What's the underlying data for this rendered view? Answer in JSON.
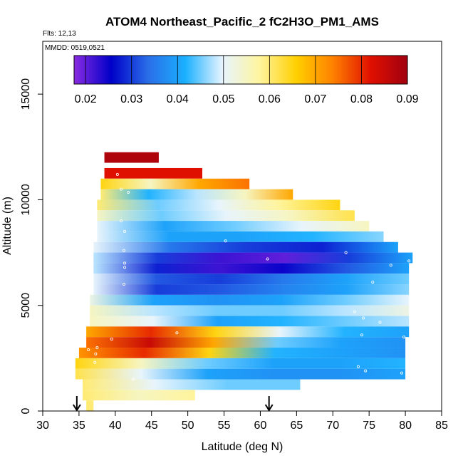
{
  "chart_data": {
    "type": "heatmap",
    "title": "ATOM4 Northeast_Pacific_2 fC2H3O_PM1_AMS",
    "flights_label": "Flts: 12,13",
    "date_label": "MMDD: 0519,0521",
    "xlabel": "Latitude (deg N)",
    "ylabel": "Altitude (m)",
    "xlim": [
      30,
      85
    ],
    "ylim": [
      0,
      17500
    ],
    "x_ticks": [
      "30",
      "35",
      "40",
      "45",
      "50",
      "55",
      "60",
      "65",
      "70",
      "75",
      "80",
      "85"
    ],
    "y_ticks": [
      "0",
      "5000",
      "10000",
      "15000"
    ],
    "colorbar": {
      "range": [
        0.0175,
        0.09
      ],
      "tick_values": [
        0.02,
        0.03,
        0.04,
        0.05,
        0.06,
        0.07,
        0.08,
        0.09
      ],
      "tick_labels": [
        "0.02",
        "0.03",
        "0.04",
        "0.05",
        "0.06",
        "0.07",
        "0.08",
        "0.09"
      ],
      "colors": [
        "#8a2be2",
        "#0000c8",
        "#2a6ee8",
        "#1ab0ff",
        "#e6f4ff",
        "#fff5a0",
        "#ffd000",
        "#ff8000",
        "#e01000",
        "#a00010"
      ]
    },
    "arrows_latitude": [
      34.7,
      61.2
    ],
    "layers": [
      {
        "alt": 12000,
        "lat": [
          38.5,
          46
        ],
        "values": [
          0.088,
          0.088
        ]
      },
      {
        "alt": 11250,
        "lat": [
          38.5,
          52
        ],
        "values": [
          0.082,
          0.082
        ]
      },
      {
        "alt": 10750,
        "lat": [
          38,
          58.5
        ],
        "values": [
          0.065,
          0.055,
          0.07,
          0.075
        ]
      },
      {
        "alt": 10250,
        "lat": [
          38,
          64.5
        ],
        "values": [
          0.06,
          0.042,
          0.048,
          0.055,
          0.07
        ]
      },
      {
        "alt": 9750,
        "lat": [
          37.5,
          71
        ],
        "values": [
          0.06,
          0.045,
          0.05,
          0.058,
          0.065
        ]
      },
      {
        "alt": 9250,
        "lat": [
          37.5,
          73
        ],
        "values": [
          0.055,
          0.045,
          0.05,
          0.055,
          0.062
        ]
      },
      {
        "alt": 8750,
        "lat": [
          37.5,
          75
        ],
        "values": [
          0.05,
          0.04,
          0.045,
          0.05,
          0.055
        ]
      },
      {
        "alt": 8250,
        "lat": [
          37.5,
          77
        ],
        "values": [
          0.05,
          0.04,
          0.04,
          0.042,
          0.046
        ]
      },
      {
        "alt": 7750,
        "lat": [
          37,
          79
        ],
        "values": [
          0.05,
          0.035,
          0.03,
          0.028,
          0.04
        ]
      },
      {
        "alt": 7250,
        "lat": [
          37,
          81
        ],
        "values": [
          0.048,
          0.03,
          0.022,
          0.02,
          0.03,
          0.04
        ]
      },
      {
        "alt": 6750,
        "lat": [
          37,
          80.5
        ],
        "values": [
          0.048,
          0.028,
          0.022,
          0.025,
          0.032,
          0.04
        ]
      },
      {
        "alt": 6250,
        "lat": [
          37,
          80.5
        ],
        "values": [
          0.05,
          0.032,
          0.03,
          0.035,
          0.04,
          0.045
        ]
      },
      {
        "alt": 5750,
        "lat": [
          37,
          80.5
        ],
        "values": [
          0.05,
          0.03,
          0.032,
          0.036,
          0.04,
          0.046
        ]
      },
      {
        "alt": 5250,
        "lat": [
          36.5,
          80.5
        ],
        "values": [
          0.052,
          0.04,
          0.038,
          0.04,
          0.045,
          0.05
        ]
      },
      {
        "alt": 4750,
        "lat": [
          36.5,
          80.5
        ],
        "values": [
          0.055,
          0.048,
          0.045,
          0.045,
          0.048,
          0.052
        ]
      },
      {
        "alt": 4250,
        "lat": [
          36.5,
          80.5
        ],
        "values": [
          0.055,
          0.05,
          0.04,
          0.042,
          0.045,
          0.048
        ]
      },
      {
        "alt": 3750,
        "lat": [
          36,
          80.5
        ],
        "values": [
          0.07,
          0.08,
          0.065,
          0.05,
          0.042,
          0.04
        ]
      },
      {
        "alt": 3250,
        "lat": [
          36,
          80
        ],
        "values": [
          0.075,
          0.085,
          0.07,
          0.045,
          0.04,
          0.038
        ]
      },
      {
        "alt": 2750,
        "lat": [
          35,
          80
        ],
        "values": [
          0.072,
          0.08,
          0.065,
          0.042,
          0.04,
          0.038
        ]
      },
      {
        "alt": 2250,
        "lat": [
          34.5,
          80
        ],
        "values": [
          0.065,
          0.055,
          0.045,
          0.04,
          0.04,
          0.042
        ]
      },
      {
        "alt": 1750,
        "lat": [
          34.5,
          80
        ],
        "values": [
          0.062,
          0.05,
          0.04,
          0.038,
          0.038,
          0.04
        ]
      },
      {
        "alt": 1250,
        "lat": [
          35.5,
          65.5
        ],
        "values": [
          0.06,
          0.05,
          0.045,
          0.045
        ]
      },
      {
        "alt": 750,
        "lat": [
          35.5,
          51
        ],
        "values": [
          0.06,
          0.055,
          0.058
        ]
      },
      {
        "alt": 250,
        "lat": [
          36,
          37
        ],
        "values": [
          0.06
        ]
      }
    ],
    "points": [
      [
        40.3,
        11200
      ],
      [
        40.8,
        10500
      ],
      [
        41.8,
        10350
      ],
      [
        40.8,
        9000
      ],
      [
        41.3,
        8500
      ],
      [
        41.2,
        7600
      ],
      [
        41.3,
        7000
      ],
      [
        41.3,
        6800
      ],
      [
        41.2,
        6000
      ],
      [
        55.2,
        8050
      ],
      [
        61,
        7200
      ],
      [
        71.8,
        7500
      ],
      [
        78,
        6900
      ],
      [
        80.5,
        7100
      ],
      [
        75.5,
        6100
      ],
      [
        73,
        4700
      ],
      [
        74.2,
        4400
      ],
      [
        74,
        3600
      ],
      [
        76.5,
        4200
      ],
      [
        79.8,
        3500
      ],
      [
        48.5,
        3700
      ],
      [
        37.5,
        3000
      ],
      [
        37.3,
        2700
      ],
      [
        42.5,
        1500
      ],
      [
        73.5,
        2100
      ],
      [
        74.5,
        1900
      ],
      [
        79.5,
        1800
      ],
      [
        37.2,
        2300
      ],
      [
        36.3,
        2900
      ],
      [
        39.5,
        3400
      ]
    ]
  }
}
